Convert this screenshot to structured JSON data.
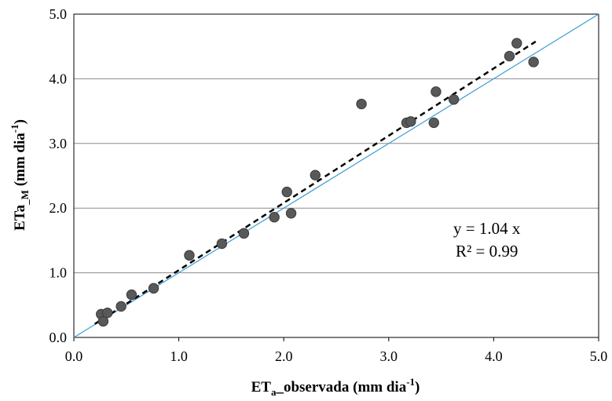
{
  "chart_data": {
    "type": "scatter",
    "title": "",
    "xlabel": {
      "main": "ET",
      "sub": "a",
      "rest": "_observada (mm dia",
      "sup": "-1",
      "close": ")"
    },
    "ylabel": {
      "main": "ETa",
      "sub": "_M",
      "rest": " (mm dia",
      "sup": "-1",
      "close": ")"
    },
    "xlim": [
      0,
      5
    ],
    "ylim": [
      0,
      5
    ],
    "x_ticks": [
      "0.0",
      "1.0",
      "2.0",
      "3.0",
      "4.0",
      "5.0"
    ],
    "y_ticks": [
      "0.0",
      "1.0",
      "2.0",
      "3.0",
      "4.0",
      "5.0"
    ],
    "grid": "horizontal",
    "x": [
      0.26,
      0.28,
      0.32,
      0.45,
      0.55,
      0.76,
      1.1,
      1.41,
      1.62,
      1.91,
      2.03,
      2.07,
      2.3,
      2.74,
      3.17,
      3.21,
      3.43,
      3.45,
      3.62,
      4.15,
      4.22,
      4.38
    ],
    "y": [
      0.36,
      0.25,
      0.38,
      0.48,
      0.66,
      0.76,
      1.27,
      1.45,
      1.61,
      1.86,
      2.25,
      1.92,
      2.51,
      3.61,
      3.32,
      3.34,
      3.32,
      3.8,
      3.68,
      4.35,
      4.55,
      4.26
    ],
    "trendline": {
      "slope": 1.04,
      "intercept": 0,
      "x_range": [
        0.2,
        4.4
      ],
      "style": "dashed",
      "color": "#000000"
    },
    "reference_line": {
      "slope": 1,
      "intercept": 0,
      "x_range": [
        0,
        5
      ],
      "color": "#3b9bd6"
    },
    "marker_color": "#595959",
    "annotation": {
      "equation": "y = 1.04 x",
      "r2": "R² = 0.99"
    }
  }
}
